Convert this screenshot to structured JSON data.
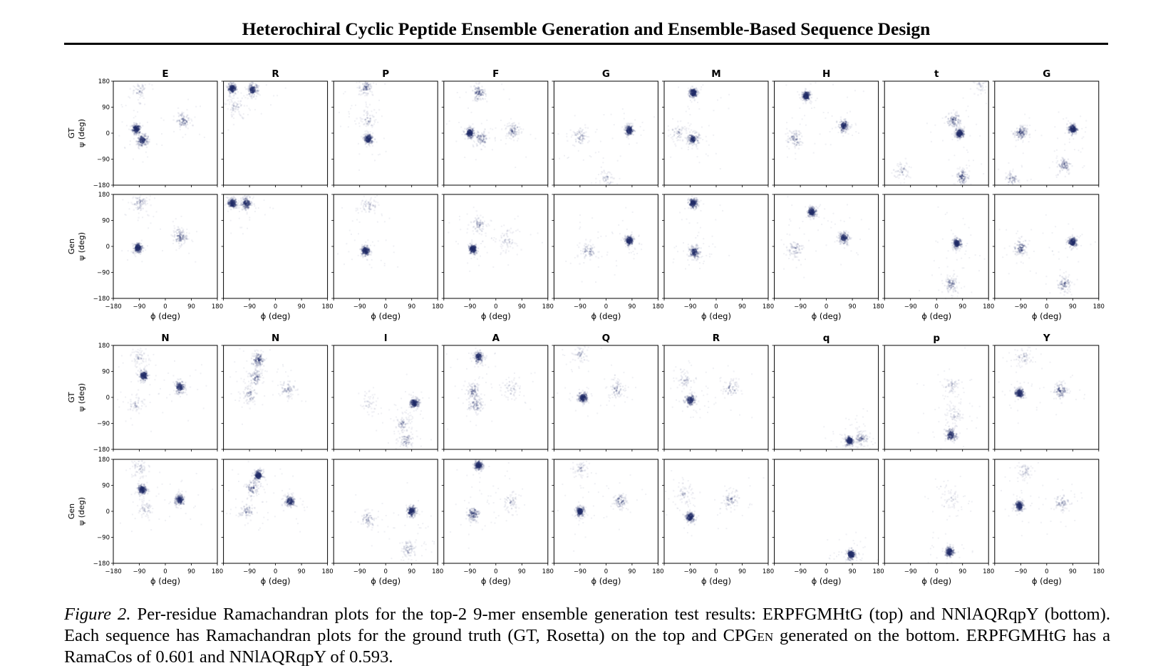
{
  "header": {
    "title": "Heterochiral Cyclic Peptide Ensemble Generation and Ensemble-Based Sequence Design"
  },
  "figure": {
    "caption": {
      "label": "Figure 2.",
      "text_part1": "Per-residue Ramachandran plots for the top-2 9-mer ensemble generation test results: ERPFGMHtG (top) and NNlAQRqpY (bottom). Each sequence has Ramachandran plots for the ground truth (GT, Rosetta) on the top and CP",
      "text_sc": "Gen",
      "text_part2": " generated on the bottom. ERPFGMHtG has a RamaCos of 0.601 and NNlAQRqpY of 0.593."
    }
  },
  "chart_data": {
    "type": "heatmap",
    "xlabel": "ϕ (deg)",
    "ylabel": "ψ (deg)",
    "xlim": [
      -180,
      180
    ],
    "ylim": [
      -180,
      180
    ],
    "xticks": [
      "−180",
      "−90",
      "0",
      "90",
      "180"
    ],
    "yticks": [
      "180",
      "90",
      "0",
      "−90",
      "−180"
    ],
    "color": "#1f2a66",
    "groups": [
      {
        "sequence": "ERPFGMHtG",
        "residues": [
          "E",
          "R",
          "P",
          "F",
          "G",
          "M",
          "H",
          "t",
          "G"
        ],
        "rows": [
          {
            "label": "GT",
            "clusters": [
              [
                [
                  -100,
                  15,
                  1.0
                ],
                [
                  -80,
                  -25,
                  0.8
                ],
                [
                  60,
                  45,
                  0.5
                ],
                [
                  -90,
                  150,
                  0.3
                ]
              ],
              [
                [
                  -150,
                  155,
                  1.0
                ],
                [
                  -80,
                  150,
                  0.8
                ],
                [
                  -140,
                  90,
                  0.3
                ]
              ],
              [
                [
                  -70,
                  160,
                  0.5
                ],
                [
                  -60,
                  50,
                  0.3
                ],
                [
                  -60,
                  -20,
                  1.0
                ]
              ],
              [
                [
                  -90,
                  0,
                  1.0
                ],
                [
                  -50,
                  -20,
                  0.5
                ],
                [
                  -60,
                  140,
                  0.6
                ],
                [
                  60,
                  10,
                  0.5
                ]
              ],
              [
                [
                  80,
                  10,
                  1.0
                ],
                [
                  -90,
                  -10,
                  0.4
                ],
                [
                  0,
                  -160,
                  0.3
                ]
              ],
              [
                [
                  -80,
                  140,
                  1.0
                ],
                [
                  -80,
                  -20,
                  0.8
                ],
                [
                  -130,
                  0,
                  0.3
                ]
              ],
              [
                [
                  -70,
                  130,
                  1.0
                ],
                [
                  60,
                  25,
                  0.8
                ],
                [
                  -110,
                  -20,
                  0.5
                ]
              ],
              [
                [
                  80,
                  0,
                  1.0
                ],
                [
                  60,
                  45,
                  0.6
                ],
                [
                  90,
                  -150,
                  0.6
                ],
                [
                  -120,
                  -130,
                  0.3
                ],
                [
                  150,
                  170,
                  0.3
                ]
              ],
              [
                [
                  -90,
                  0,
                  0.7
                ],
                [
                  90,
                  15,
                  1.0
                ],
                [
                  60,
                  -110,
                  0.5
                ],
                [
                  -120,
                  -160,
                  0.4
                ]
              ]
            ]
          },
          {
            "label": "Gen",
            "clusters": [
              [
                [
                  -95,
                  -5,
                  1.0
                ],
                [
                  50,
                  35,
                  0.6
                ],
                [
                  -90,
                  150,
                  0.4
                ]
              ],
              [
                [
                  -150,
                  150,
                  1.0
                ],
                [
                  -100,
                  150,
                  0.8
                ]
              ],
              [
                [
                  -70,
                  -15,
                  1.0
                ],
                [
                  -60,
                  140,
                  0.3
                ]
              ],
              [
                [
                  -80,
                  -10,
                  1.0
                ],
                [
                  -60,
                  80,
                  0.4
                ],
                [
                  40,
                  20,
                  0.3
                ]
              ],
              [
                [
                  80,
                  20,
                  1.0
                ],
                [
                  -60,
                  -15,
                  0.4
                ]
              ],
              [
                [
                  -80,
                  150,
                  1.0
                ],
                [
                  -75,
                  -20,
                  0.8
                ]
              ],
              [
                [
                  -50,
                  120,
                  1.0
                ],
                [
                  60,
                  30,
                  0.8
                ],
                [
                  -110,
                  -10,
                  0.4
                ]
              ],
              [
                [
                  70,
                  10,
                  1.0
                ],
                [
                  50,
                  -130,
                  0.5
                ]
              ],
              [
                [
                  -90,
                  -5,
                  0.6
                ],
                [
                  90,
                  15,
                  1.0
                ],
                [
                  60,
                  -130,
                  0.5
                ]
              ]
            ]
          }
        ]
      },
      {
        "sequence": "NNlAQRqpY",
        "residues": [
          "N",
          "N",
          "l",
          "A",
          "Q",
          "R",
          "q",
          "p",
          "Y"
        ],
        "rows": [
          {
            "label": "GT",
            "clusters": [
              [
                [
                  -75,
                  75,
                  0.9
                ],
                [
                  50,
                  35,
                  0.8
                ],
                [
                  -90,
                  140,
                  0.3
                ],
                [
                  -100,
                  -20,
                  0.3
                ]
              ],
              [
                [
                  -60,
                  130,
                  0.7
                ],
                [
                  -70,
                  70,
                  0.5
                ],
                [
                  -90,
                  10,
                  0.4
                ],
                [
                  40,
                  30,
                  0.4
                ]
              ],
              [
                [
                  100,
                  -20,
                  1.0
                ],
                [
                  60,
                  -90,
                  0.4
                ],
                [
                  70,
                  -150,
                  0.4
                ],
                [
                  -60,
                  -20,
                  0.2
                ]
              ],
              [
                [
                  -60,
                  140,
                  0.8
                ],
                [
                  -80,
                  20,
                  0.5
                ],
                [
                  -70,
                  -25,
                  0.5
                ],
                [
                  50,
                  30,
                  0.3
                ]
              ],
              [
                [
                  -80,
                  0,
                  1.0
                ],
                [
                  40,
                  30,
                  0.4
                ],
                [
                  -90,
                  150,
                  0.3
                ]
              ],
              [
                [
                  -90,
                  -10,
                  0.8
                ],
                [
                  50,
                  30,
                  0.4
                ],
                [
                  -110,
                  60,
                  0.3
                ]
              ],
              [
                [
                  80,
                  -150,
                  1.0
                ],
                [
                  120,
                  -140,
                  0.5
                ]
              ],
              [
                [
                  50,
                  -130,
                  0.8
                ],
                [
                  60,
                  -60,
                  0.3
                ],
                [
                  50,
                  40,
                  0.3
                ]
              ],
              [
                [
                  -95,
                  15,
                  1.0
                ],
                [
                  50,
                  25,
                  0.6
                ],
                [
                  -80,
                  140,
                  0.3
                ]
              ]
            ]
          },
          {
            "label": "Gen",
            "clusters": [
              [
                [
                  -80,
                  75,
                  1.0
                ],
                [
                  50,
                  40,
                  0.9
                ],
                [
                  -70,
                  5,
                  0.3
                ],
                [
                  -90,
                  150,
                  0.3
                ]
              ],
              [
                [
                  -60,
                  125,
                  1.0
                ],
                [
                  -80,
                  80,
                  0.5
                ],
                [
                  50,
                  35,
                  0.8
                ],
                [
                  -100,
                  0,
                  0.4
                ]
              ],
              [
                [
                  90,
                  0,
                  1.0
                ],
                [
                  -60,
                  -25,
                  0.4
                ],
                [
                  80,
                  -130,
                  0.4
                ]
              ],
              [
                [
                  -60,
                  160,
                  1.0
                ],
                [
                  -80,
                  -10,
                  0.7
                ],
                [
                  50,
                  30,
                  0.3
                ]
              ],
              [
                [
                  -90,
                  0,
                  1.0
                ],
                [
                  50,
                  35,
                  0.5
                ],
                [
                  -90,
                  150,
                  0.3
                ]
              ],
              [
                [
                  -90,
                  -20,
                  1.0
                ],
                [
                  50,
                  40,
                  0.4
                ],
                [
                  -110,
                  60,
                  0.3
                ]
              ],
              [
                [
                  85,
                  -150,
                  1.0
                ]
              ],
              [
                [
                  45,
                  -140,
                  1.0
                ],
                [
                  50,
                  40,
                  0.2
                ]
              ],
              [
                [
                  -95,
                  20,
                  1.0
                ],
                [
                  50,
                  30,
                  0.4
                ],
                [
                  -80,
                  140,
                  0.3
                ]
              ]
            ]
          }
        ]
      }
    ]
  }
}
